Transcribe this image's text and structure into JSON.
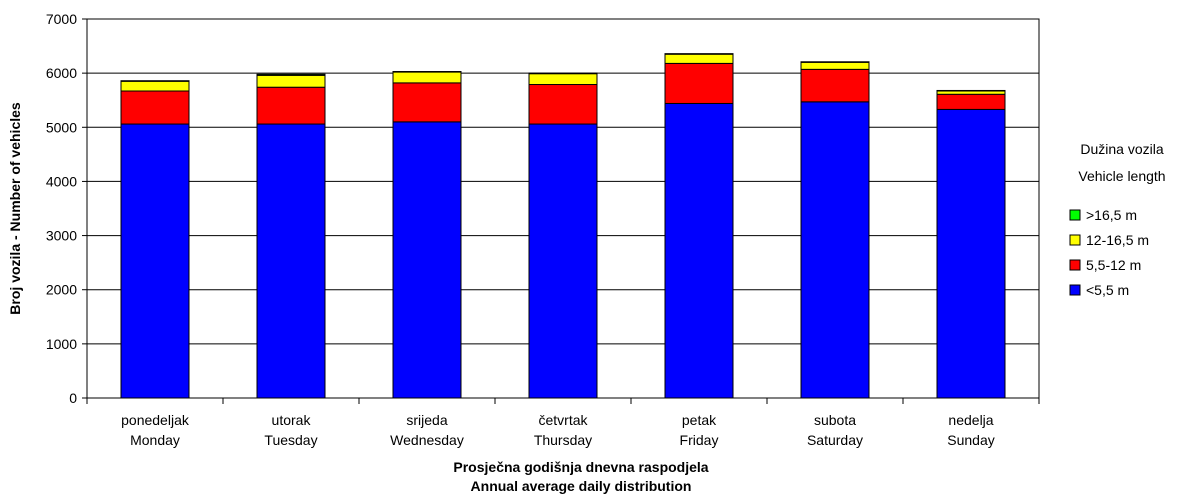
{
  "chart_data": {
    "type": "bar",
    "stacked": true,
    "categories": [
      [
        "ponedeljak",
        "Monday"
      ],
      [
        "utorak",
        "Tuesday"
      ],
      [
        "srijeda",
        "Wednesday"
      ],
      [
        "četvrtak",
        "Thursday"
      ],
      [
        "petak",
        "Friday"
      ],
      [
        "subota",
        "Saturday"
      ],
      [
        "nedelja",
        "Sunday"
      ]
    ],
    "series": [
      {
        "name": "<5,5 m",
        "color": "#0000ff",
        "values": [
          5060,
          5060,
          5100,
          5060,
          5440,
          5470,
          5330
        ]
      },
      {
        "name": "5,5-12 m",
        "color": "#ff0000",
        "values": [
          610,
          680,
          720,
          730,
          740,
          600,
          280
        ]
      },
      {
        "name": "12-16,5 m",
        "color": "#ffff00",
        "values": [
          180,
          220,
          200,
          200,
          170,
          130,
          60
        ]
      },
      {
        "name": ">16,5 m",
        "color": "#00ff00",
        "values": [
          10,
          20,
          10,
          10,
          10,
          10,
          10
        ]
      }
    ],
    "ylim": [
      0,
      7000
    ],
    "yticks": [
      0,
      1000,
      2000,
      3000,
      4000,
      5000,
      6000,
      7000
    ],
    "ylabel": "Broj vozila - Number of vehicles",
    "xlabel": [
      "Prosječna godišnja dnevna raspodjela",
      "Annual average daily distribution"
    ],
    "legend": {
      "title": [
        "Dužina vozila",
        "Vehicle length"
      ],
      "position": "right",
      "order": [
        ">16,5 m",
        "12-16,5 m",
        "5,5-12 m",
        "<5,5 m"
      ]
    },
    "grid": true
  }
}
